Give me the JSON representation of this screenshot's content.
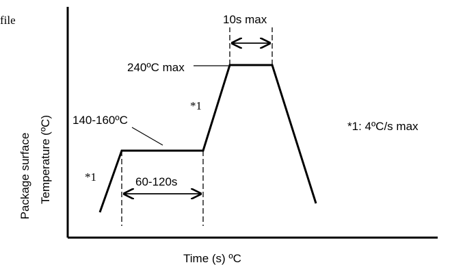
{
  "diagram": {
    "title_fragment": "file",
    "x_axis_label": "Time (s)  ºC",
    "y_axis_label_line1": "Package surface",
    "y_axis_label_line2": "Temperature (ºC)",
    "peak_temp_label": "240ºC  max",
    "peak_time_label": "10s max",
    "preheat_temp_label": "140-160ºC",
    "preheat_time_label": "60-120s",
    "ramp_marker_left": "*1",
    "ramp_marker_right": "*1",
    "footnote": "*1: 4ºC/s max"
  }
}
